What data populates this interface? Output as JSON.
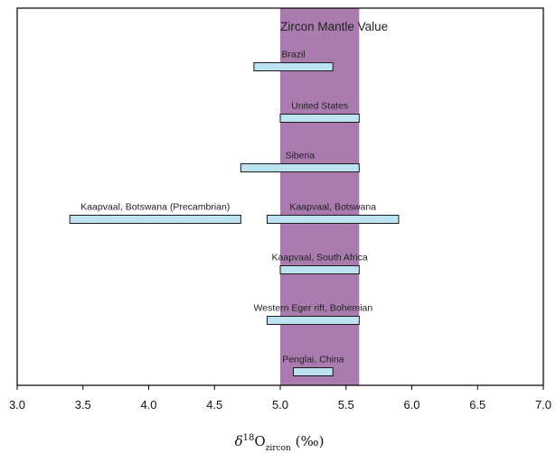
{
  "chart_data": {
    "type": "bar",
    "orientation": "horizontal-range",
    "xlim": [
      3.0,
      7.0
    ],
    "x_ticks": [
      "3.0",
      "3.5",
      "4.0",
      "4.5",
      "5.0",
      "5.5",
      "6.0",
      "6.5",
      "7.0"
    ],
    "xlabel": {
      "main": "δ",
      "sup": "18",
      "element": "O",
      "sub": "zircon",
      "unit": " (‰)"
    },
    "band": {
      "label": "Zircon Mantle Value",
      "x": [
        5.0,
        5.6
      ],
      "color": "#aa7bae"
    },
    "bar_color": "#bde3f3",
    "bar_edge_color": "#1a1a1a",
    "series": [
      {
        "label": "Brazil",
        "x": [
          4.8,
          5.4
        ]
      },
      {
        "label": "United States",
        "x": [
          5.0,
          5.6
        ]
      },
      {
        "label": "Siberia",
        "x": [
          4.7,
          5.6
        ]
      },
      {
        "label": "Kaapvaal, Botswana (Precambrian)",
        "x": [
          3.4,
          4.7
        ]
      },
      {
        "label": "Kaapvaal, Botswana",
        "x": [
          4.9,
          5.9
        ]
      },
      {
        "label": "Kaapvaal, South Africa",
        "x": [
          5.0,
          5.6
        ]
      },
      {
        "label": "Western Eger rift, Bohemian",
        "x": [
          4.9,
          5.6
        ]
      },
      {
        "label": "Penglai, China",
        "x": [
          5.1,
          5.4
        ]
      }
    ]
  }
}
